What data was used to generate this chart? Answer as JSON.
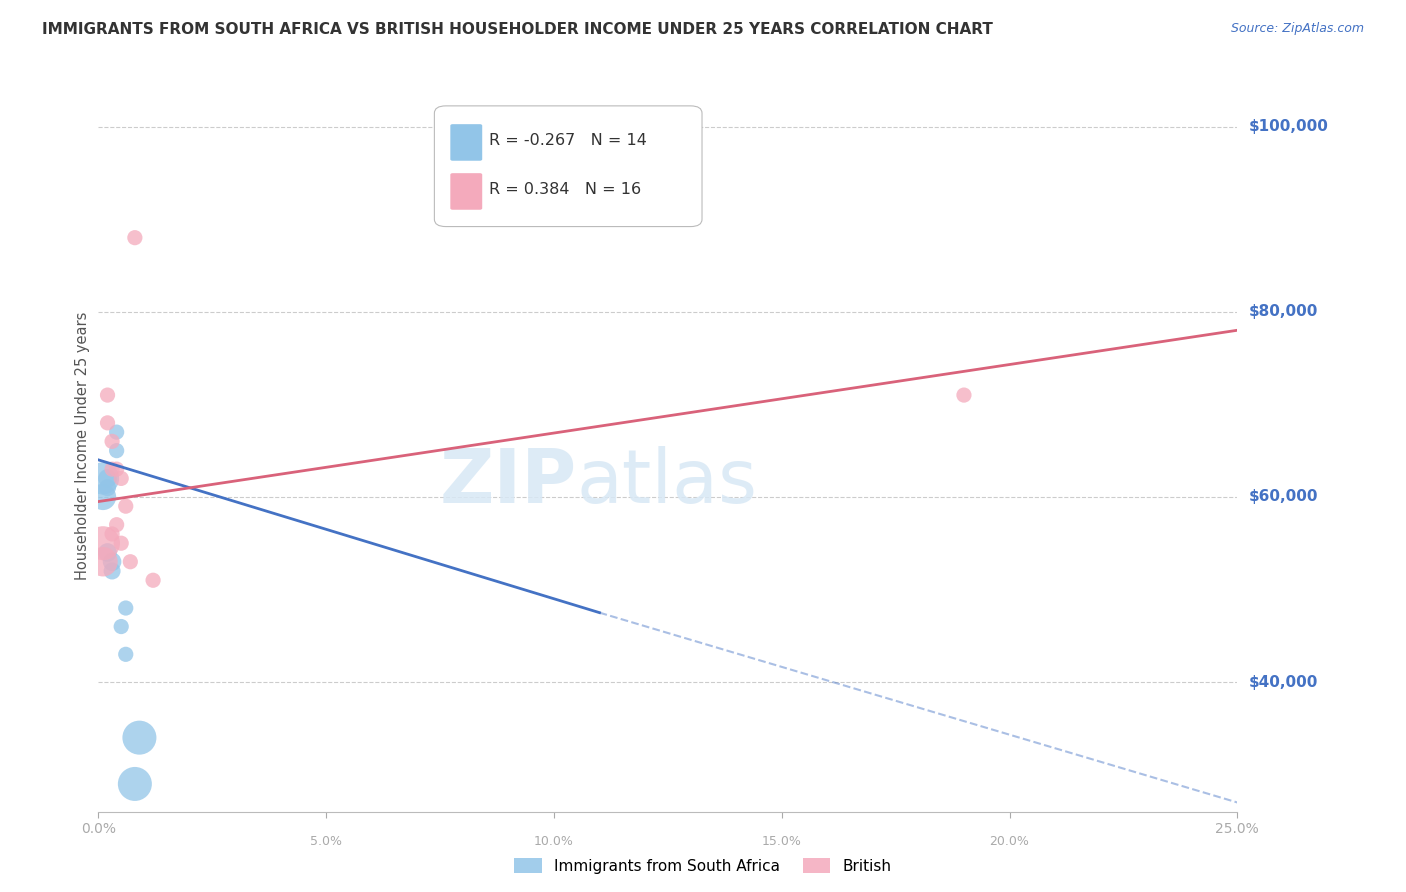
{
  "title": "IMMIGRANTS FROM SOUTH AFRICA VS BRITISH HOUSEHOLDER INCOME UNDER 25 YEARS CORRELATION CHART",
  "source": "Source: ZipAtlas.com",
  "ylabel": "Householder Income Under 25 years",
  "ylabel_ticks": [
    "$100,000",
    "$80,000",
    "$60,000",
    "$40,000"
  ],
  "ylabel_values": [
    100000,
    80000,
    60000,
    40000
  ],
  "ylim": [
    26000,
    105000
  ],
  "xlim": [
    0.0,
    0.25
  ],
  "legend_blue_r": "-0.267",
  "legend_blue_n": "14",
  "legend_pink_r": "0.384",
  "legend_pink_n": "16",
  "blue_scatter_x": [
    0.001,
    0.001,
    0.002,
    0.002,
    0.002,
    0.003,
    0.003,
    0.004,
    0.004,
    0.005,
    0.006,
    0.006,
    0.009,
    0.008
  ],
  "blue_scatter_y": [
    62000,
    60000,
    62000,
    61000,
    54000,
    53000,
    52000,
    67000,
    65000,
    46000,
    48000,
    43000,
    34000,
    29000
  ],
  "blue_scatter_size": [
    180,
    120,
    60,
    50,
    60,
    60,
    50,
    40,
    40,
    40,
    40,
    40,
    200,
    200
  ],
  "pink_scatter_x": [
    0.001,
    0.001,
    0.002,
    0.002,
    0.003,
    0.003,
    0.003,
    0.004,
    0.004,
    0.005,
    0.008,
    0.005,
    0.012,
    0.007,
    0.19,
    0.006
  ],
  "pink_scatter_y": [
    55000,
    53000,
    71000,
    68000,
    66000,
    63000,
    56000,
    63000,
    57000,
    62000,
    88000,
    55000,
    51000,
    53000,
    71000,
    59000
  ],
  "pink_scatter_size": [
    200,
    150,
    40,
    40,
    40,
    40,
    40,
    40,
    40,
    40,
    40,
    40,
    40,
    40,
    40,
    40
  ],
  "blue_line_x0": 0.0,
  "blue_line_x1": 0.11,
  "blue_line_x2": 0.25,
  "blue_line_y0": 64000,
  "blue_line_y1": 47500,
  "blue_line_y2": 27000,
  "pink_line_x0": 0.0,
  "pink_line_x1": 0.25,
  "pink_line_y0": 59500,
  "pink_line_y1": 78000,
  "blue_color": "#92C5E8",
  "pink_color": "#F4AABC",
  "blue_line_color": "#4472C4",
  "pink_line_color": "#D9627A",
  "axis_label_color": "#4472C4",
  "title_color": "#333333",
  "watermark_zip": "ZIP",
  "watermark_atlas": "atlas",
  "background_color": "#FFFFFF",
  "grid_color": "#CCCCCC",
  "legend_label_blue": "Immigrants from South Africa",
  "legend_label_pink": "British"
}
